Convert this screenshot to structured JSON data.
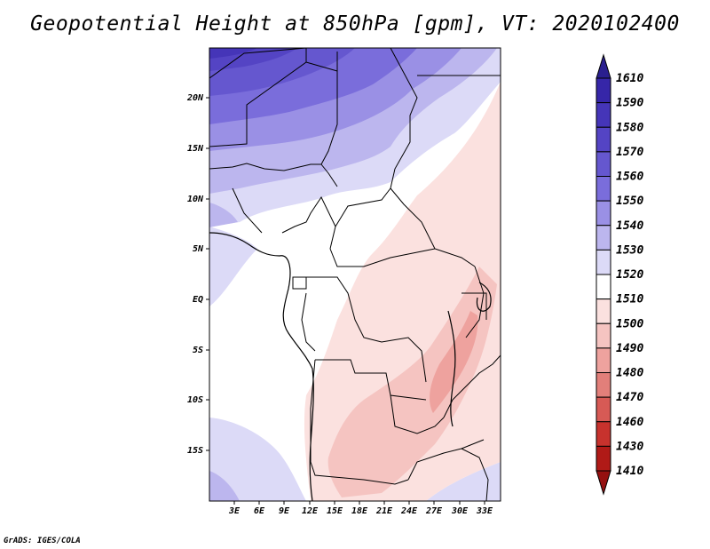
{
  "title": "Geopotential Height at 850hPa [gpm], VT: 2020102400",
  "footer": "GrADS: IGES/COLA",
  "map": {
    "lat_ticks": [
      "20N",
      "15N",
      "10N",
      "5N",
      "EQ",
      "5S",
      "10S",
      "15S"
    ],
    "lon_ticks": [
      "3E",
      "6E",
      "9E",
      "12E",
      "15E",
      "18E",
      "21E",
      "24E",
      "27E",
      "30E",
      "33E"
    ]
  },
  "colorbar": {
    "labels": [
      "1610",
      "1590",
      "1580",
      "1570",
      "1560",
      "1550",
      "1540",
      "1530",
      "1520",
      "1510",
      "1500",
      "1490",
      "1480",
      "1470",
      "1460",
      "1430",
      "1410"
    ],
    "colors": [
      "#2a1f8f",
      "#3626a8",
      "#4535b8",
      "#5444c4",
      "#6557cf",
      "#7a6ddb",
      "#9a90e5",
      "#bcb6ee",
      "#dcdaf7",
      "#ffffff",
      "#fbe1df",
      "#f5c4c1",
      "#eea29e",
      "#e27f7a",
      "#d75a55",
      "#c7322d",
      "#b01a17",
      "#951010"
    ]
  }
}
